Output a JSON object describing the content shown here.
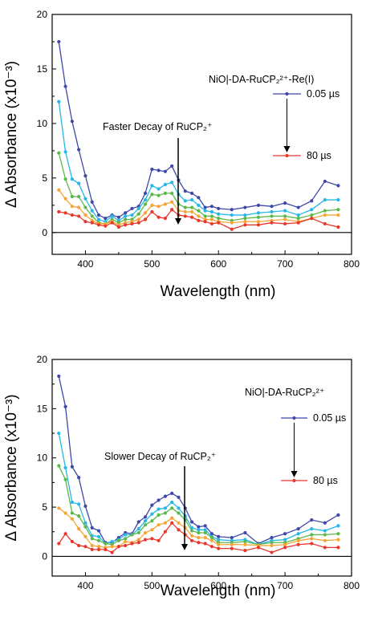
{
  "colors": {
    "blue": "#3f48a8",
    "cyan": "#27b6e8",
    "green": "#5cb84a",
    "orange": "#f5a536",
    "red": "#e8382c"
  },
  "chart_data": [
    {
      "type": "line",
      "xlabel": "Wavelength (nm)",
      "ylabel": "Δ Absorbance (x10⁻³)",
      "xlim": [
        350,
        800
      ],
      "ylim": [
        -2,
        20
      ],
      "xticks": [
        "400",
        "500",
        "600",
        "700",
        "800"
      ],
      "yticks": [
        "0",
        "5",
        "10",
        "15",
        "20"
      ],
      "sample_label": "NiO|-DA-RuCP₂²⁺-Re(I)",
      "legend_first": "0.05 µs",
      "legend_last": "80 µs",
      "annotation": "Faster Decay of RuCP₂⁺",
      "x": [
        360,
        370,
        380,
        390,
        400,
        410,
        420,
        430,
        440,
        450,
        460,
        470,
        480,
        490,
        500,
        510,
        520,
        530,
        540,
        550,
        560,
        570,
        580,
        590,
        600,
        620,
        640,
        660,
        680,
        700,
        720,
        740,
        760,
        780
      ],
      "series": [
        {
          "color": "blue",
          "values": [
            17.5,
            13.4,
            10.2,
            7.6,
            5.2,
            2.8,
            1.6,
            1.3,
            1.6,
            1.4,
            1.8,
            2.2,
            2.4,
            3.6,
            5.8,
            5.7,
            5.6,
            6.1,
            4.8,
            3.8,
            3.6,
            3.2,
            2.3,
            2.4,
            2.2,
            2.1,
            2.3,
            2.5,
            2.4,
            2.7,
            2.3,
            2.9,
            4.7,
            4.3
          ]
        },
        {
          "color": "cyan",
          "values": [
            12.0,
            7.4,
            4.9,
            4.5,
            3.1,
            2.0,
            1.2,
            1.0,
            1.5,
            1.1,
            1.5,
            1.6,
            2.2,
            3.0,
            4.3,
            4.0,
            4.4,
            4.6,
            3.5,
            2.9,
            3.0,
            2.5,
            2.0,
            1.9,
            1.7,
            1.6,
            1.6,
            1.8,
            1.9,
            2.0,
            1.6,
            2.1,
            3.0,
            3.0
          ]
        },
        {
          "color": "green",
          "values": [
            7.3,
            4.9,
            3.3,
            3.3,
            2.3,
            1.5,
            0.9,
            0.8,
            1.2,
            0.9,
            1.2,
            1.2,
            1.7,
            2.6,
            3.5,
            3.4,
            3.6,
            3.6,
            2.6,
            2.3,
            2.3,
            2.0,
            1.5,
            1.5,
            1.3,
            1.1,
            1.3,
            1.4,
            1.5,
            1.5,
            1.3,
            1.6,
            2.0,
            2.1
          ]
        },
        {
          "color": "orange",
          "values": [
            3.9,
            3.1,
            2.4,
            2.3,
            1.6,
            1.1,
            0.8,
            0.8,
            1.0,
            0.7,
            0.9,
            1.0,
            1.2,
            1.8,
            2.5,
            2.4,
            2.6,
            2.8,
            2.0,
            1.9,
            1.9,
            1.5,
            1.2,
            1.2,
            1.0,
            0.9,
            1.0,
            1.0,
            1.1,
            1.2,
            1.0,
            1.3,
            1.6,
            1.6
          ]
        },
        {
          "color": "red",
          "values": [
            1.9,
            1.8,
            1.6,
            1.5,
            1.0,
            0.9,
            0.7,
            0.6,
            0.9,
            0.5,
            0.7,
            0.8,
            0.9,
            1.2,
            1.9,
            1.4,
            1.3,
            2.1,
            1.6,
            1.5,
            1.4,
            1.1,
            1.0,
            0.8,
            0.9,
            0.3,
            0.7,
            0.7,
            0.9,
            0.8,
            0.9,
            1.3,
            0.8,
            0.5
          ]
        }
      ]
    },
    {
      "type": "line",
      "xlabel": "Wavelength (nm)",
      "ylabel": "Δ Absorbance (x10⁻³)",
      "xlim": [
        350,
        800
      ],
      "ylim": [
        -2,
        20
      ],
      "xticks": [
        "400",
        "500",
        "600",
        "700",
        "800"
      ],
      "yticks": [
        "0",
        "5",
        "10",
        "15",
        "20"
      ],
      "sample_label": "NiO|-DA-RuCP₂²⁺",
      "legend_first": "0.05 µs",
      "legend_last": "80 µs",
      "annotation": "Slower Decay of RuCP₂⁺",
      "x": [
        360,
        370,
        380,
        390,
        400,
        410,
        420,
        430,
        440,
        450,
        460,
        470,
        480,
        490,
        500,
        510,
        520,
        530,
        540,
        550,
        560,
        570,
        580,
        590,
        600,
        620,
        640,
        660,
        680,
        700,
        720,
        740,
        760,
        780
      ],
      "series": [
        {
          "color": "blue",
          "values": [
            18.3,
            15.2,
            9.1,
            8.0,
            5.1,
            2.9,
            2.6,
            1.4,
            1.4,
            1.9,
            2.4,
            2.3,
            3.5,
            4.0,
            5.2,
            5.7,
            6.1,
            6.4,
            6.0,
            4.9,
            3.5,
            3.0,
            3.1,
            2.3,
            2.0,
            1.9,
            2.4,
            1.3,
            1.9,
            2.3,
            2.8,
            3.7,
            3.4,
            4.2
          ]
        },
        {
          "color": "cyan",
          "values": [
            12.5,
            9.0,
            5.5,
            5.3,
            3.4,
            2.1,
            2.0,
            1.3,
            1.5,
            1.7,
            2.2,
            2.2,
            2.8,
            3.6,
            4.3,
            4.8,
            4.9,
            5.5,
            4.9,
            4.1,
            2.9,
            2.7,
            2.7,
            2.0,
            1.7,
            1.6,
            1.7,
            1.2,
            1.6,
            1.7,
            2.3,
            2.8,
            2.6,
            3.1
          ]
        },
        {
          "color": "green",
          "values": [
            9.2,
            7.8,
            4.4,
            4.1,
            3.0,
            1.8,
            1.6,
            1.3,
            1.2,
            1.6,
            1.8,
            2.2,
            2.4,
            3.2,
            3.6,
            4.2,
            4.4,
            4.9,
            4.4,
            3.7,
            2.6,
            2.4,
            2.4,
            1.9,
            1.4,
            1.4,
            1.5,
            1.2,
            1.4,
            1.4,
            1.8,
            2.2,
            2.2,
            2.3
          ]
        },
        {
          "color": "orange",
          "values": [
            4.9,
            4.4,
            3.8,
            2.8,
            2.0,
            1.1,
            1.0,
            0.9,
            1.0,
            1.0,
            1.5,
            1.4,
            1.7,
            2.4,
            2.7,
            3.2,
            3.4,
            3.9,
            3.4,
            2.9,
            2.1,
            1.9,
            1.9,
            1.6,
            1.2,
            1.2,
            1.2,
            1.1,
            1.1,
            1.2,
            1.6,
            1.8,
            1.6,
            1.7
          ]
        },
        {
          "color": "red",
          "values": [
            1.3,
            2.3,
            1.5,
            1.1,
            1.0,
            0.7,
            0.7,
            0.7,
            0.4,
            1.0,
            1.1,
            1.3,
            1.4,
            1.7,
            1.8,
            1.6,
            2.5,
            3.4,
            2.7,
            2.2,
            1.6,
            1.4,
            1.3,
            1.0,
            0.8,
            0.8,
            0.6,
            0.9,
            0.4,
            0.9,
            1.2,
            1.3,
            0.9,
            0.9
          ]
        }
      ]
    }
  ]
}
